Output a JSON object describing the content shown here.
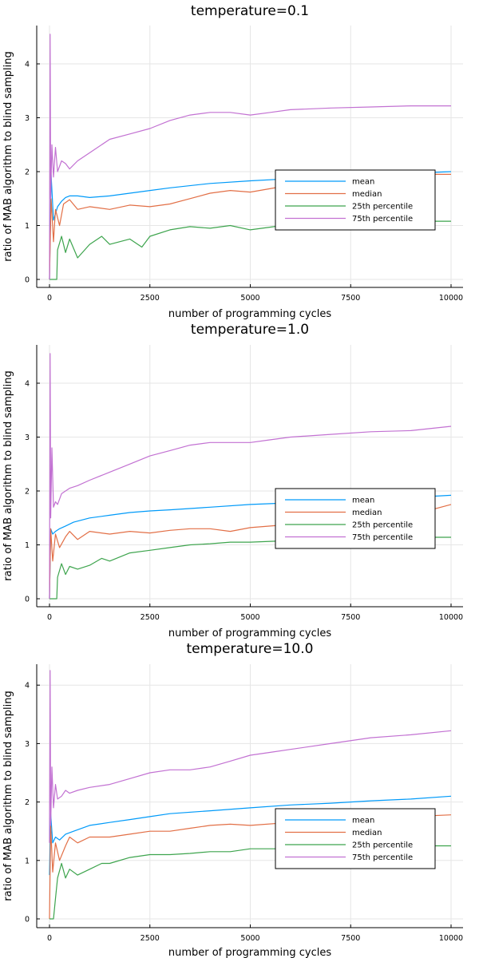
{
  "colors": {
    "mean": "#009af9",
    "median": "#e26f46",
    "p25": "#3da44d",
    "p75": "#c271d2"
  },
  "chart_data": [
    {
      "type": "line",
      "title": "temperature=0.1",
      "xlabel": "number of programming cycles",
      "ylabel": "ratio of MAB algorithm to blind sampling",
      "xlim": [
        -300,
        10300
      ],
      "ylim": [
        -0.12,
        4.7
      ],
      "xticks": [
        0,
        2500,
        5000,
        7500,
        10000
      ],
      "yticks": [
        0,
        1,
        2,
        3,
        4
      ],
      "grid": true,
      "legend_position": "right",
      "series": [
        {
          "name": "mean",
          "color_key": "mean",
          "x": [
            0,
            40,
            100,
            200,
            300,
            400,
            500,
            700,
            1000,
            1500,
            2000,
            2500,
            3000,
            4000,
            5000,
            6000,
            7000,
            8000,
            9000,
            10000
          ],
          "y": [
            0,
            1.95,
            1.1,
            1.35,
            1.45,
            1.52,
            1.55,
            1.55,
            1.52,
            1.55,
            1.6,
            1.65,
            1.7,
            1.78,
            1.83,
            1.87,
            1.9,
            1.94,
            1.97,
            2.0
          ]
        },
        {
          "name": "median",
          "color_key": "median",
          "x": [
            0,
            40,
            100,
            150,
            250,
            350,
            500,
            700,
            1000,
            1500,
            2000,
            2500,
            3000,
            3500,
            4000,
            4500,
            5000,
            6000,
            7000,
            8000,
            9000,
            10000
          ],
          "y": [
            0,
            1.5,
            0.7,
            1.3,
            1.0,
            1.4,
            1.48,
            1.3,
            1.35,
            1.3,
            1.38,
            1.35,
            1.4,
            1.5,
            1.6,
            1.65,
            1.62,
            1.75,
            1.8,
            1.9,
            1.95,
            1.95
          ]
        },
        {
          "name": "25th percentile",
          "color_key": "p25",
          "x": [
            0,
            100,
            180,
            200,
            300,
            400,
            500,
            700,
            1000,
            1300,
            1500,
            2000,
            2300,
            2500,
            3000,
            3500,
            4000,
            4500,
            5000,
            6000,
            7000,
            8000,
            9000,
            10000
          ],
          "y": [
            0,
            0,
            0,
            0.55,
            0.8,
            0.5,
            0.75,
            0.4,
            0.65,
            0.8,
            0.65,
            0.75,
            0.6,
            0.8,
            0.92,
            0.98,
            0.95,
            1.0,
            0.92,
            1.02,
            1.05,
            1.05,
            1.08,
            1.08
          ]
        },
        {
          "name": "75th percentile",
          "color_key": "p75",
          "x": [
            0,
            15,
            30,
            60,
            100,
            150,
            200,
            300,
            400,
            500,
            700,
            1000,
            1500,
            2000,
            2500,
            3000,
            3500,
            4000,
            4500,
            5000,
            5500,
            6000,
            7000,
            8000,
            9000,
            10000
          ],
          "y": [
            0,
            4.55,
            1.5,
            2.5,
            1.9,
            2.45,
            2.0,
            2.2,
            2.15,
            2.05,
            2.2,
            2.35,
            2.6,
            2.7,
            2.8,
            2.95,
            3.05,
            3.1,
            3.1,
            3.05,
            3.1,
            3.15,
            3.18,
            3.2,
            3.22,
            3.22
          ]
        }
      ]
    },
    {
      "type": "line",
      "title": "temperature=1.0",
      "xlabel": "number of programming cycles",
      "ylabel": "ratio of MAB algorithm to blind sampling",
      "xlim": [
        -300,
        10300
      ],
      "ylim": [
        -0.12,
        4.7
      ],
      "xticks": [
        0,
        2500,
        5000,
        7500,
        10000
      ],
      "yticks": [
        0,
        1,
        2,
        3,
        4
      ],
      "grid": true,
      "legend_position": "right",
      "series": [
        {
          "name": "mean",
          "color_key": "mean",
          "x": [
            0,
            30,
            80,
            150,
            250,
            400,
            600,
            1000,
            1500,
            2000,
            2500,
            3000,
            4000,
            5000,
            6000,
            7000,
            8000,
            9000,
            10000
          ],
          "y": [
            0,
            1.3,
            1.2,
            1.25,
            1.3,
            1.35,
            1.42,
            1.5,
            1.55,
            1.6,
            1.63,
            1.65,
            1.7,
            1.75,
            1.78,
            1.82,
            1.85,
            1.88,
            1.92
          ]
        },
        {
          "name": "median",
          "color_key": "median",
          "x": [
            0,
            30,
            80,
            150,
            250,
            400,
            500,
            700,
            1000,
            1500,
            2000,
            2500,
            3000,
            3500,
            4000,
            4500,
            5000,
            6000,
            7000,
            8000,
            9000,
            10000
          ],
          "y": [
            0,
            1.3,
            0.7,
            1.2,
            0.95,
            1.15,
            1.25,
            1.1,
            1.25,
            1.2,
            1.25,
            1.22,
            1.27,
            1.3,
            1.3,
            1.25,
            1.32,
            1.38,
            1.45,
            1.5,
            1.55,
            1.75
          ]
        },
        {
          "name": "25th percentile",
          "color_key": "p25",
          "x": [
            0,
            100,
            180,
            200,
            300,
            400,
            500,
            700,
            1000,
            1300,
            1500,
            2000,
            2500,
            3000,
            3500,
            4000,
            4500,
            5000,
            6000,
            7000,
            8000,
            9000,
            10000
          ],
          "y": [
            0,
            0,
            0,
            0.4,
            0.65,
            0.45,
            0.6,
            0.55,
            0.62,
            0.75,
            0.7,
            0.85,
            0.9,
            0.95,
            1.0,
            1.02,
            1.05,
            1.05,
            1.08,
            1.1,
            1.12,
            1.14,
            1.14
          ]
        },
        {
          "name": "75th percentile",
          "color_key": "p75",
          "x": [
            0,
            15,
            30,
            60,
            100,
            150,
            200,
            300,
            400,
            500,
            700,
            1000,
            1500,
            2000,
            2500,
            3000,
            3500,
            4000,
            4500,
            5000,
            5500,
            6000,
            7000,
            8000,
            9000,
            10000
          ],
          "y": [
            0,
            4.55,
            1.5,
            2.8,
            1.7,
            1.8,
            1.75,
            1.95,
            2.0,
            2.05,
            2.1,
            2.2,
            2.35,
            2.5,
            2.65,
            2.75,
            2.85,
            2.9,
            2.9,
            2.9,
            2.95,
            3.0,
            3.05,
            3.1,
            3.12,
            3.2
          ]
        }
      ]
    },
    {
      "type": "line",
      "title": "temperature=10.0",
      "xlabel": "number of programming cycles",
      "ylabel": "ratio of MAB algorithm to blind sampling",
      "xlim": [
        -300,
        10300
      ],
      "ylim": [
        -0.12,
        4.42
      ],
      "xticks": [
        0,
        2500,
        5000,
        7500,
        10000
      ],
      "yticks": [
        0,
        1,
        2,
        3,
        4
      ],
      "grid": true,
      "legend_position": "right",
      "series": [
        {
          "name": "mean",
          "color_key": "mean",
          "x": [
            0,
            30,
            80,
            150,
            250,
            400,
            600,
            1000,
            1500,
            2000,
            2500,
            3000,
            4000,
            5000,
            6000,
            7000,
            8000,
            9000,
            10000
          ],
          "y": [
            0.75,
            1.8,
            1.3,
            1.4,
            1.35,
            1.45,
            1.5,
            1.6,
            1.65,
            1.7,
            1.75,
            1.8,
            1.85,
            1.9,
            1.95,
            1.98,
            2.02,
            2.05,
            2.1
          ]
        },
        {
          "name": "median",
          "color_key": "median",
          "x": [
            0,
            30,
            80,
            150,
            250,
            400,
            500,
            700,
            1000,
            1500,
            2000,
            2500,
            3000,
            3500,
            4000,
            4500,
            5000,
            6000,
            7000,
            8000,
            9000,
            10000
          ],
          "y": [
            0,
            1.6,
            0.8,
            1.3,
            1.0,
            1.25,
            1.4,
            1.3,
            1.4,
            1.4,
            1.45,
            1.5,
            1.5,
            1.55,
            1.6,
            1.62,
            1.6,
            1.65,
            1.68,
            1.72,
            1.75,
            1.78
          ]
        },
        {
          "name": "25th percentile",
          "color_key": "p25",
          "x": [
            0,
            100,
            150,
            200,
            300,
            400,
            500,
            700,
            1000,
            1300,
            1500,
            2000,
            2500,
            3000,
            3500,
            4000,
            4500,
            5000,
            6000,
            7000,
            8000,
            9000,
            10000
          ],
          "y": [
            0,
            0,
            0.35,
            0.7,
            0.95,
            0.7,
            0.85,
            0.75,
            0.85,
            0.95,
            0.95,
            1.05,
            1.1,
            1.1,
            1.12,
            1.15,
            1.15,
            1.2,
            1.2,
            1.2,
            1.22,
            1.25,
            1.25
          ]
        },
        {
          "name": "75th percentile",
          "color_key": "p75",
          "x": [
            0,
            15,
            30,
            60,
            100,
            150,
            200,
            300,
            400,
            500,
            700,
            1000,
            1500,
            2000,
            2500,
            3000,
            3500,
            4000,
            4500,
            5000,
            5500,
            6000,
            7000,
            8000,
            9000,
            10000
          ],
          "y": [
            1.3,
            4.25,
            1.6,
            2.6,
            1.9,
            2.3,
            2.05,
            2.1,
            2.2,
            2.15,
            2.2,
            2.25,
            2.3,
            2.4,
            2.5,
            2.55,
            2.55,
            2.6,
            2.7,
            2.8,
            2.85,
            2.9,
            3.0,
            3.1,
            3.15,
            3.22
          ]
        }
      ]
    }
  ]
}
